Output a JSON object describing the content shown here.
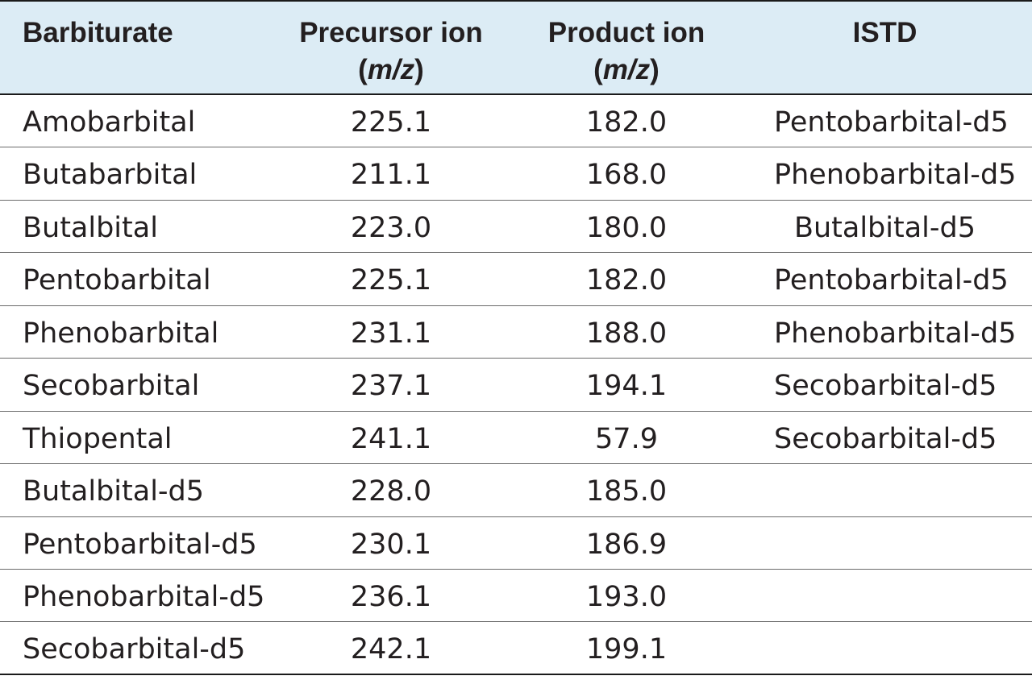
{
  "header": {
    "barbiturate": "Barbiturate",
    "precursor_line1": "Precursor ion",
    "precursor_paren_open": "(",
    "precursor_unit": "m/z",
    "precursor_paren_close": ")",
    "product_line1": "Product ion",
    "product_paren_open": "(",
    "product_unit": "m/z",
    "product_paren_close": ")",
    "istd": "ISTD"
  },
  "rows": [
    {
      "name": "Amobarbital",
      "precursor": "225.1",
      "product": "182.0",
      "istd": "Pentobarbital-d5"
    },
    {
      "name": "Butabarbital",
      "precursor": "211.1",
      "product": "168.0",
      "istd": "Phenobarbital-d5"
    },
    {
      "name": "Butalbital",
      "precursor": "223.0",
      "product": "180.0",
      "istd": "Butalbital-d5"
    },
    {
      "name": "Pentobarbital",
      "precursor": "225.1",
      "product": "182.0",
      "istd": "Pentobarbital-d5"
    },
    {
      "name": "Phenobarbital",
      "precursor": "231.1",
      "product": "188.0",
      "istd": "Phenobarbital-d5"
    },
    {
      "name": "Secobarbital",
      "precursor": "237.1",
      "product": "194.1",
      "istd": "Secobarbital-d5"
    },
    {
      "name": "Thiopental",
      "precursor": "241.1",
      "product": "57.9",
      "istd": "Secobarbital-d5"
    },
    {
      "name": "Butalbital-d5",
      "precursor": "228.0",
      "product": "185.0",
      "istd": ""
    },
    {
      "name": "Pentobarbital-d5",
      "precursor": "230.1",
      "product": "186.9",
      "istd": ""
    },
    {
      "name": "Phenobarbital-d5",
      "precursor": "236.1",
      "product": "193.0",
      "istd": ""
    },
    {
      "name": "Secobarbital-d5",
      "precursor": "242.1",
      "product": "199.1",
      "istd": ""
    }
  ]
}
